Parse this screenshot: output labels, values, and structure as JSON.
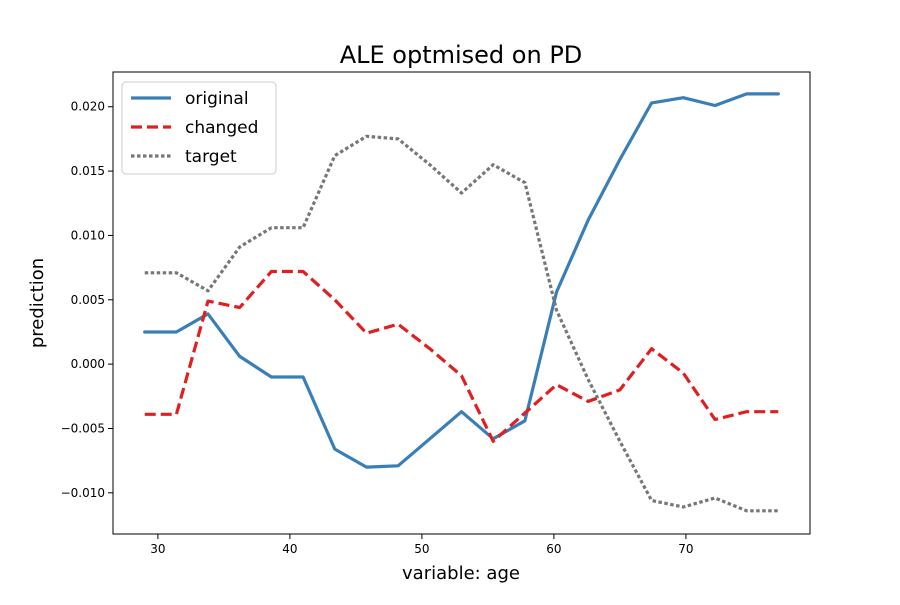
{
  "chart_data": {
    "type": "line",
    "title": "ALE optmised on PD",
    "xlabel": "variable: age",
    "ylabel": "prediction",
    "xlim": [
      26.6,
      79.4
    ],
    "ylim": [
      -0.0132,
      0.0227
    ],
    "xticks": [
      30,
      40,
      50,
      60,
      70
    ],
    "xtick_labels": [
      "30",
      "40",
      "50",
      "60",
      "70"
    ],
    "yticks": [
      -0.01,
      -0.005,
      0.0,
      0.005,
      0.01,
      0.015,
      0.02
    ],
    "ytick_labels": [
      "−0.010",
      "−0.005",
      "0.000",
      "0.005",
      "0.010",
      "0.015",
      "0.020"
    ],
    "grid": false,
    "legend_position": "top-left",
    "x": [
      29,
      31.4,
      33.8,
      36.2,
      38.6,
      41,
      43.4,
      45.8,
      48.2,
      50.6,
      53,
      55.4,
      57.8,
      60.2,
      62.6,
      65,
      67.4,
      69.8,
      72.2,
      74.6,
      77
    ],
    "series": [
      {
        "name": "original",
        "color": "#3a7eb8",
        "style": "solid",
        "values": [
          0.0025,
          0.0025,
          0.0039,
          0.0006,
          -0.001,
          -0.001,
          -0.0066,
          -0.008,
          -0.0079,
          -0.0058,
          -0.0037,
          -0.0058,
          -0.0044,
          0.0056,
          0.0112,
          0.0159,
          0.0203,
          0.0207,
          0.0201,
          0.021,
          0.021
        ]
      },
      {
        "name": "changed",
        "color": "#e02020",
        "style": "dashed",
        "values": [
          -0.0039,
          -0.0039,
          0.0049,
          0.0044,
          0.0072,
          0.0072,
          0.005,
          0.0024,
          0.0031,
          0.0012,
          -0.0009,
          -0.006,
          -0.0038,
          -0.0016,
          -0.0029,
          -0.002,
          0.0012,
          -0.0007,
          -0.0043,
          -0.0037,
          -0.0037
        ]
      },
      {
        "name": "target",
        "color": "#777777",
        "style": "dotted",
        "values": [
          0.0071,
          0.0071,
          0.0057,
          0.0091,
          0.0106,
          0.0106,
          0.0162,
          0.0177,
          0.0175,
          0.0155,
          0.0133,
          0.0155,
          0.0141,
          0.0042,
          -0.0012,
          -0.006,
          -0.0106,
          -0.0111,
          -0.0104,
          -0.0114,
          -0.0114
        ]
      }
    ]
  }
}
